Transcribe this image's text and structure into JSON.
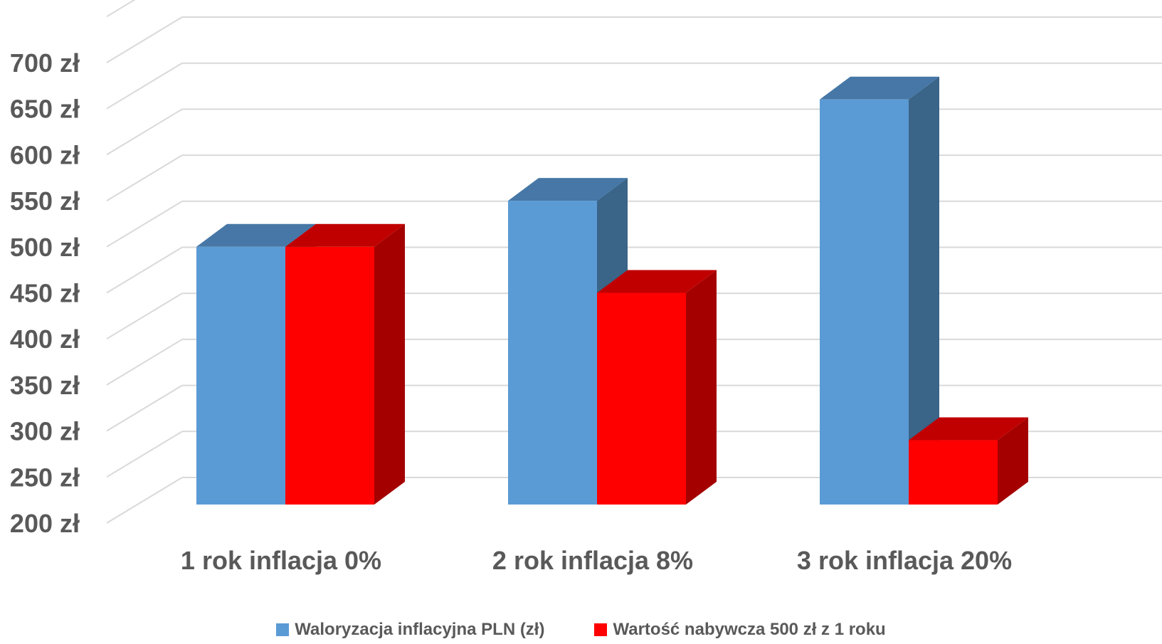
{
  "chart_data": {
    "type": "bar",
    "style": "3d-clustered-column",
    "categories": [
      "1 rok inflacja 0%",
      "2 rok inflacja 8%",
      "3 rok inflacja 20%"
    ],
    "series": [
      {
        "name": "Waloryzacja inflacyjna PLN (zł)",
        "values": [
          500,
          550,
          660
        ],
        "color": "#5B9BD5",
        "side_color": "#3A6488",
        "top_color": "#4677A6"
      },
      {
        "name": "Wartość nabywcza 500 zł z 1 roku",
        "values": [
          500,
          450,
          290
        ],
        "color": "#FF0000",
        "side_color": "#A50000",
        "top_color": "#C00000"
      }
    ],
    "y_ticks": [
      "200 zł",
      "250 zł",
      "300 zł",
      "350 zł",
      "400 zł",
      "450 zł",
      "500 zł",
      "550 zł",
      "600 zł",
      "650 zł",
      "700 zł"
    ],
    "ylim": [
      200,
      750
    ],
    "grid": true,
    "legend_position": "bottom"
  }
}
